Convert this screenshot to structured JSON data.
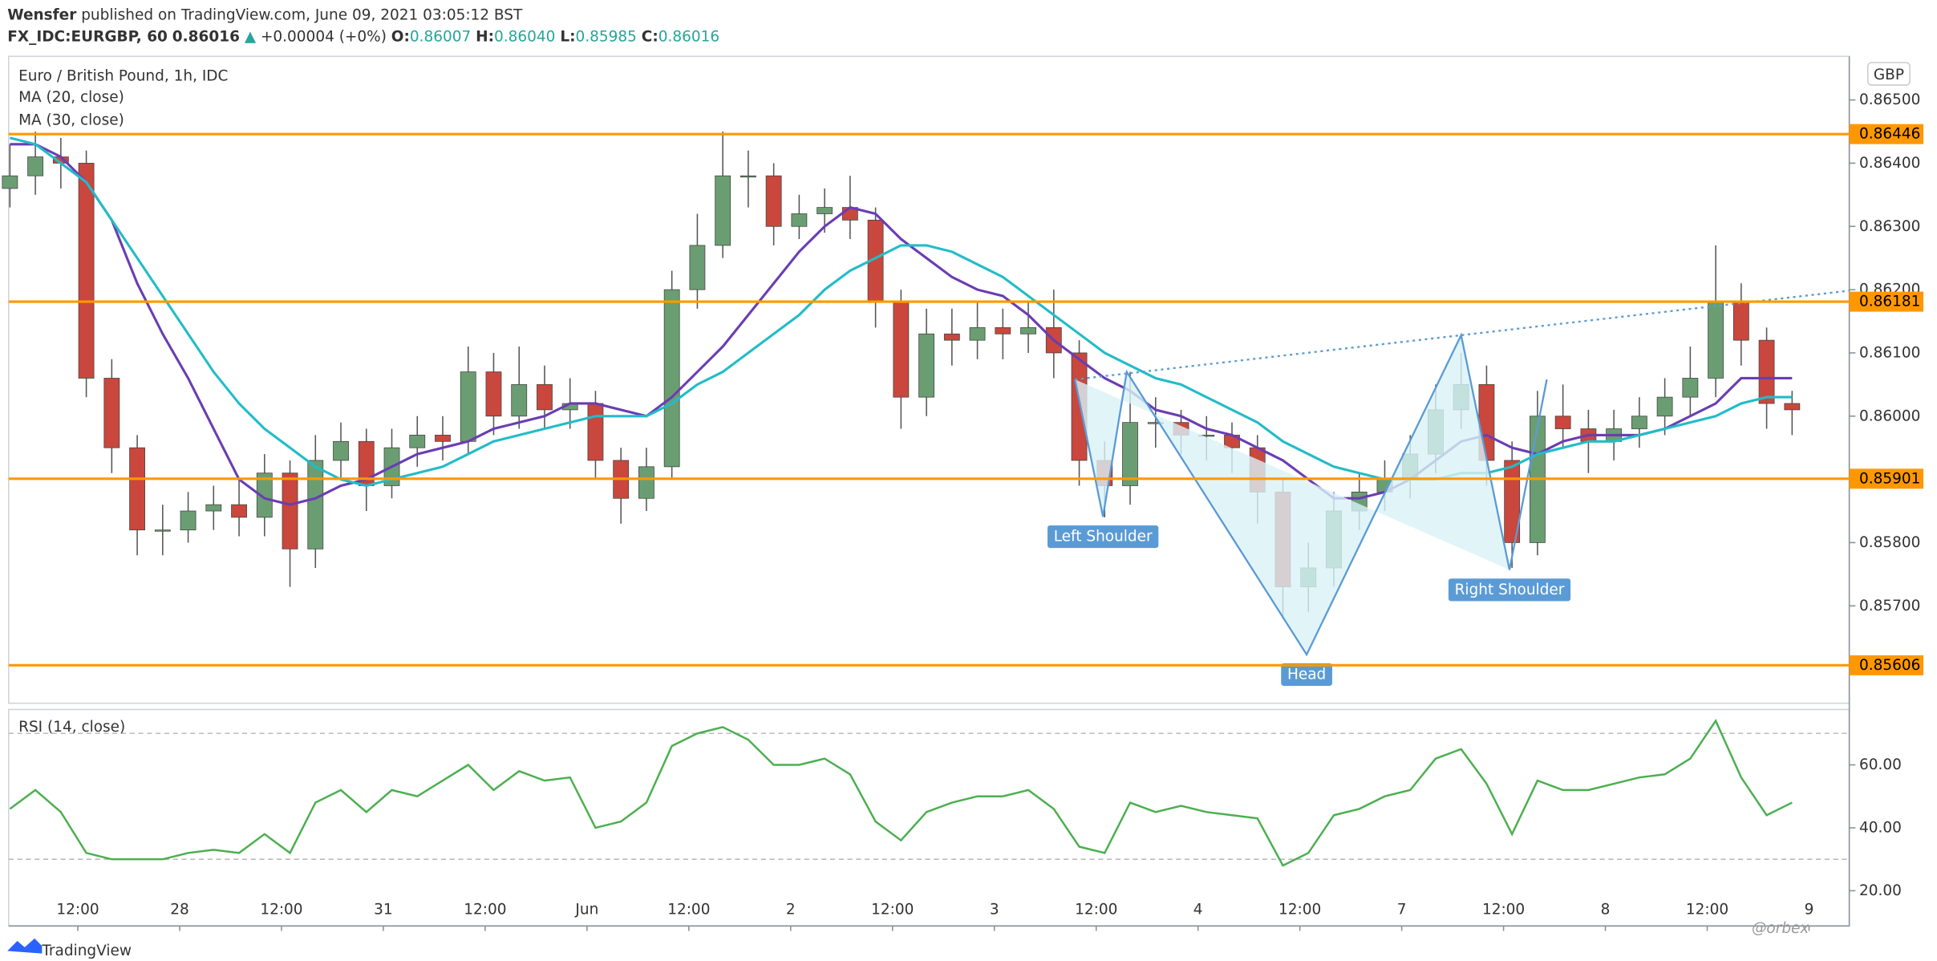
{
  "header": {
    "author": "Wensfer",
    "published": "published on TradingView.com, June 09, 2021 03:05:12 BST",
    "symbol": "FX_IDC:EURGBP, 60",
    "price": "0.86016",
    "arrow": "▲",
    "change": "+0.00004 (+0%)",
    "ohlc": [
      {
        "key": "O:",
        "value": "0.86007"
      },
      {
        "key": "H:",
        "value": "0.86040"
      },
      {
        "key": "L:",
        "value": "0.85985"
      },
      {
        "key": "C:",
        "value": "0.86016"
      }
    ]
  },
  "footer": {
    "brand": "TradingView",
    "watermark": "@orbex"
  },
  "chart_data": [
    {
      "type": "candlestick",
      "title": "Euro / British Pound, 1h, IDC",
      "currency": "GBP",
      "up_color": "#6a9e72",
      "down_color": "#c9473d",
      "x": [
        0,
        3,
        6,
        9,
        12,
        15,
        18,
        21,
        24,
        27,
        30,
        33,
        36,
        39,
        42,
        45,
        48,
        51,
        54,
        57,
        60,
        63,
        66,
        69,
        72,
        75,
        78,
        81,
        84,
        87,
        90,
        93,
        96,
        99,
        102,
        105,
        108,
        111,
        114,
        117,
        120,
        123,
        126,
        129,
        132,
        135,
        138,
        141,
        144,
        147,
        150,
        153,
        156,
        159,
        162,
        165,
        168,
        171,
        174,
        177,
        180,
        183,
        186,
        189,
        192,
        195,
        198,
        201,
        204,
        207,
        210
      ],
      "open": [
        0.8636,
        0.8638,
        0.8641,
        0.864,
        0.8606,
        0.8595,
        0.8582,
        0.8582,
        0.8585,
        0.8586,
        0.8584,
        0.8591,
        0.8579,
        0.8593,
        0.8596,
        0.8589,
        0.8595,
        0.8597,
        0.8596,
        0.8607,
        0.86,
        0.8605,
        0.8601,
        0.8602,
        0.8593,
        0.8587,
        0.8592,
        0.862,
        0.8627,
        0.8638,
        0.8638,
        0.863,
        0.8632,
        0.8633,
        0.8631,
        0.8618,
        0.8603,
        0.8613,
        0.8612,
        0.8614,
        0.8613,
        0.8614,
        0.861,
        0.8593,
        0.8589,
        0.8599,
        0.8599,
        0.8597,
        0.8597,
        0.8595,
        0.8588,
        0.8573,
        0.8576,
        0.8585,
        0.8588,
        0.859,
        0.8594,
        0.8601,
        0.8605,
        0.8593,
        0.858,
        0.86,
        0.8598,
        0.8596,
        0.8598,
        0.86,
        0.8603,
        0.8606,
        0.8618,
        0.8612,
        0.8602
      ],
      "high": [
        0.8643,
        0.8645,
        0.8644,
        0.8642,
        0.8609,
        0.8597,
        0.8586,
        0.8588,
        0.8589,
        0.859,
        0.8594,
        0.8593,
        0.8597,
        0.8599,
        0.8598,
        0.8598,
        0.86,
        0.86,
        0.8611,
        0.861,
        0.8611,
        0.8608,
        0.8606,
        0.8604,
        0.8595,
        0.8595,
        0.8623,
        0.8632,
        0.8645,
        0.8642,
        0.864,
        0.8635,
        0.8636,
        0.8638,
        0.8633,
        0.862,
        0.8617,
        0.8617,
        0.8618,
        0.8617,
        0.8618,
        0.862,
        0.8612,
        0.8596,
        0.8607,
        0.8603,
        0.8601,
        0.86,
        0.8599,
        0.8597,
        0.859,
        0.858,
        0.8588,
        0.8591,
        0.8593,
        0.8597,
        0.8605,
        0.861,
        0.8608,
        0.8596,
        0.8604,
        0.8605,
        0.8601,
        0.8601,
        0.8603,
        0.8606,
        0.8611,
        0.8627,
        0.8621,
        0.8614,
        0.8604
      ],
      "low": [
        0.8633,
        0.8635,
        0.8636,
        0.8603,
        0.8591,
        0.8578,
        0.8578,
        0.858,
        0.8582,
        0.8581,
        0.8581,
        0.8573,
        0.8576,
        0.859,
        0.8585,
        0.8587,
        0.8592,
        0.8593,
        0.8594,
        0.8597,
        0.8598,
        0.8598,
        0.8598,
        0.859,
        0.8583,
        0.8585,
        0.859,
        0.8617,
        0.8625,
        0.8633,
        0.8627,
        0.8628,
        0.8629,
        0.8628,
        0.8614,
        0.8598,
        0.86,
        0.8608,
        0.8609,
        0.8609,
        0.861,
        0.8606,
        0.8589,
        0.8584,
        0.8586,
        0.8595,
        0.8594,
        0.8593,
        0.8591,
        0.8583,
        0.8568,
        0.8569,
        0.8573,
        0.8582,
        0.8585,
        0.8587,
        0.8591,
        0.8598,
        0.8589,
        0.8576,
        0.8578,
        0.8595,
        0.8591,
        0.8593,
        0.8595,
        0.8597,
        0.86,
        0.8603,
        0.8608,
        0.8598,
        0.8597
      ],
      "close": [
        0.8638,
        0.8641,
        0.864,
        0.8606,
        0.8595,
        0.8582,
        0.8582,
        0.8585,
        0.8586,
        0.8584,
        0.8591,
        0.8579,
        0.8593,
        0.8596,
        0.8589,
        0.8595,
        0.8597,
        0.8596,
        0.8607,
        0.86,
        0.8605,
        0.8601,
        0.8602,
        0.8593,
        0.8587,
        0.8592,
        0.862,
        0.8627,
        0.8638,
        0.8638,
        0.863,
        0.8632,
        0.8633,
        0.8631,
        0.8618,
        0.8603,
        0.8613,
        0.8612,
        0.8614,
        0.8613,
        0.8614,
        0.861,
        0.8593,
        0.8589,
        0.8599,
        0.8599,
        0.8597,
        0.8597,
        0.8595,
        0.8588,
        0.8573,
        0.8576,
        0.8585,
        0.8588,
        0.859,
        0.8594,
        0.8601,
        0.8605,
        0.8593,
        0.858,
        0.86,
        0.8598,
        0.8596,
        0.8598,
        0.86,
        0.8603,
        0.8606,
        0.8618,
        0.8612,
        0.8602,
        0.8601
      ],
      "series": [
        {
          "name": "MA (20, close)",
          "color": "#6a3db3",
          "values": [
            0.8643,
            0.8643,
            0.8641,
            0.8637,
            0.8631,
            0.8621,
            0.8613,
            0.8606,
            0.8598,
            0.859,
            0.8587,
            0.8586,
            0.8587,
            0.8589,
            0.859,
            0.8592,
            0.8594,
            0.8595,
            0.8596,
            0.8598,
            0.8599,
            0.86,
            0.8602,
            0.8602,
            0.8601,
            0.86,
            0.8603,
            0.8607,
            0.8611,
            0.8616,
            0.8621,
            0.8626,
            0.863,
            0.8633,
            0.8632,
            0.8628,
            0.8625,
            0.8622,
            0.862,
            0.8619,
            0.8616,
            0.8612,
            0.8609,
            0.8606,
            0.8604,
            0.8601,
            0.86,
            0.8598,
            0.8597,
            0.8595,
            0.8593,
            0.859,
            0.8587,
            0.8587,
            0.8588,
            0.859,
            0.8593,
            0.8596,
            0.8597,
            0.8595,
            0.8594,
            0.8596,
            0.8597,
            0.8597,
            0.8597,
            0.8598,
            0.86,
            0.8602,
            0.8606,
            0.8606,
            0.8606
          ]
        },
        {
          "name": "MA (30, close)",
          "color": "#22bcc8",
          "values": [
            0.8644,
            0.8643,
            0.864,
            0.8637,
            0.8631,
            0.8625,
            0.8619,
            0.8613,
            0.8607,
            0.8602,
            0.8598,
            0.8595,
            0.8592,
            0.859,
            0.8589,
            0.859,
            0.8591,
            0.8592,
            0.8594,
            0.8596,
            0.8597,
            0.8598,
            0.8599,
            0.86,
            0.86,
            0.86,
            0.8602,
            0.8605,
            0.8607,
            0.861,
            0.8613,
            0.8616,
            0.862,
            0.8623,
            0.8625,
            0.8627,
            0.8627,
            0.8626,
            0.8624,
            0.8622,
            0.8619,
            0.8616,
            0.8613,
            0.861,
            0.8608,
            0.8606,
            0.8605,
            0.8603,
            0.8601,
            0.8599,
            0.8596,
            0.8594,
            0.8592,
            0.8591,
            0.859,
            0.859,
            0.859,
            0.8591,
            0.8591,
            0.8592,
            0.8594,
            0.8595,
            0.8596,
            0.8596,
            0.8597,
            0.8598,
            0.8599,
            0.86,
            0.8602,
            0.8603,
            0.8603
          ]
        }
      ],
      "levels": {
        "color": "#ff9800",
        "values": [
          0.86446,
          0.86181,
          0.85901,
          0.85606
        ]
      },
      "pattern": {
        "color": "#5b9bd5",
        "fill": "#d9f3f8",
        "x": [
          125.5,
          128.8,
          131.6,
          152.8,
          171,
          176.7,
          181.1
        ],
        "y": [
          0.86058,
          0.85841,
          0.8607,
          0.85623,
          0.86128,
          0.85757,
          0.86058
        ],
        "labels": [
          null,
          "Left Shoulder",
          null,
          "Head",
          null,
          "Right Shoulder",
          null
        ],
        "neckline": {
          "x": [
            125.5,
            171
          ],
          "y": [
            0.86058,
            0.86128
          ]
        }
      },
      "xlim": [
        -0.15,
        216.74
      ],
      "ylim": [
        0.85546,
        0.86569
      ],
      "yticks": [
        {
          "value": 0.865,
          "label": "0.86500"
        },
        {
          "value": 0.864,
          "label": "0.86400"
        },
        {
          "value": 0.863,
          "label": "0.86300"
        },
        {
          "value": 0.862,
          "label": "0.86200"
        },
        {
          "value": 0.861,
          "label": "0.86100"
        },
        {
          "value": 0.86,
          "label": "0.86000"
        },
        {
          "value": 0.859,
          "label": "0.85900"
        },
        {
          "value": 0.858,
          "label": "0.85800"
        },
        {
          "value": 0.857,
          "label": "0.85700"
        }
      ]
    },
    {
      "type": "line",
      "title": "RSI (14, close)",
      "color": "#4caf50",
      "x": [
        0,
        3,
        6,
        9,
        12,
        15,
        18,
        21,
        24,
        27,
        30,
        33,
        36,
        39,
        42,
        45,
        48,
        51,
        54,
        57,
        60,
        63,
        66,
        69,
        72,
        75,
        78,
        81,
        84,
        87,
        90,
        93,
        96,
        99,
        102,
        105,
        108,
        111,
        114,
        117,
        120,
        123,
        126,
        129,
        132,
        135,
        138,
        141,
        144,
        147,
        150,
        153,
        156,
        159,
        162,
        165,
        168,
        171,
        174,
        177,
        180,
        183,
        186,
        189,
        192,
        195,
        198,
        201,
        204,
        207,
        210
      ],
      "values": [
        46,
        52,
        45,
        32,
        30,
        30,
        30,
        32,
        33,
        32,
        38,
        32,
        48,
        52,
        45,
        52,
        50,
        55,
        60,
        52,
        58,
        55,
        56,
        40,
        42,
        48,
        66,
        70,
        72,
        68,
        60,
        60,
        62,
        57,
        42,
        36,
        45,
        48,
        50,
        50,
        52,
        46,
        34,
        32,
        48,
        45,
        47,
        45,
        44,
        43,
        28,
        32,
        44,
        46,
        50,
        52,
        62,
        65,
        54,
        38,
        55,
        52,
        52,
        54,
        56,
        57,
        62,
        74,
        56,
        44,
        48
      ],
      "bands": [
        30,
        70
      ],
      "xlim": [
        -0.15,
        216.74
      ],
      "ylim": [
        8.8,
        77.6
      ],
      "yticks": [
        {
          "value": 20,
          "label": "20.00"
        },
        {
          "value": 40,
          "label": "40.00"
        },
        {
          "value": 60,
          "label": "60.00"
        }
      ],
      "xticks": [
        {
          "value": 8,
          "label": "12:00"
        },
        {
          "value": 20,
          "label": "28"
        },
        {
          "value": 32,
          "label": "12:00"
        },
        {
          "value": 44,
          "label": "31"
        },
        {
          "value": 56,
          "label": "12:00"
        },
        {
          "value": 68,
          "label": "Jun"
        },
        {
          "value": 80,
          "label": "12:00"
        },
        {
          "value": 92,
          "label": "2"
        },
        {
          "value": 104,
          "label": "12:00"
        },
        {
          "value": 116,
          "label": "3"
        },
        {
          "value": 128,
          "label": "12:00"
        },
        {
          "value": 140,
          "label": "4"
        },
        {
          "value": 152,
          "label": "12:00"
        },
        {
          "value": 164,
          "label": "7"
        },
        {
          "value": 176,
          "label": "12:00"
        },
        {
          "value": 188,
          "label": "8"
        },
        {
          "value": 200,
          "label": "12:00"
        },
        {
          "value": 212,
          "label": "9"
        }
      ]
    }
  ]
}
